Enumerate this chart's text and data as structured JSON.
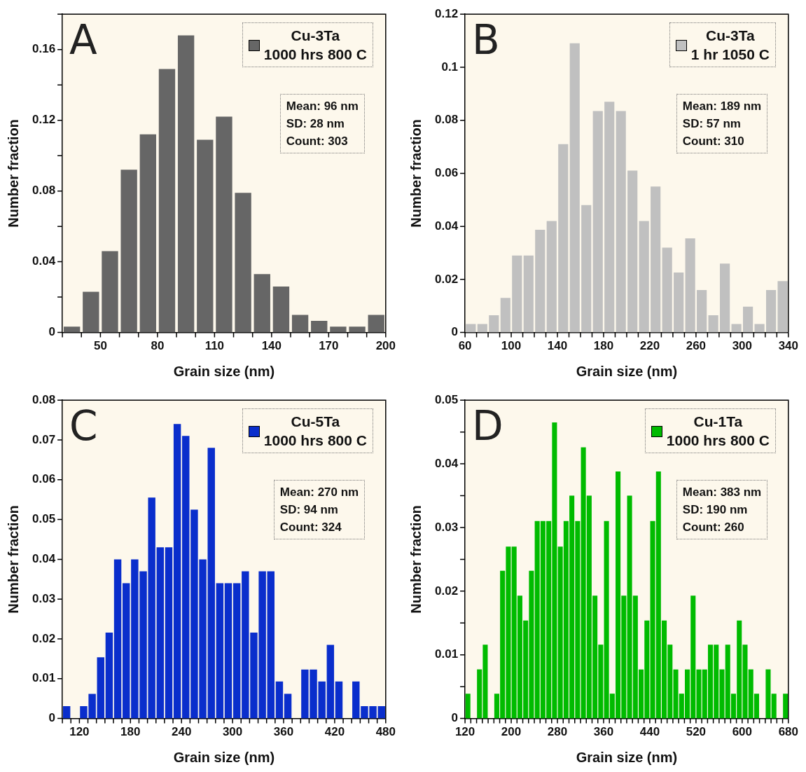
{
  "chart_data": [
    {
      "type": "histogram",
      "xlabel": "Grain size (nm)",
      "ylabel": "Number fraction",
      "legend": "top right",
      "annotations": [
        "A",
        "Mean: 96 nm",
        "SD: 28 nm",
        "Count: 303"
      ],
      "bins": [
        30,
        40,
        50,
        60,
        70,
        80,
        90,
        100,
        110,
        120,
        130,
        140,
        150,
        160,
        170,
        180,
        190,
        200
      ],
      "series": [
        {
          "name": "Cu-3Ta\n1000 hrs 800 C",
          "color": "#666666",
          "values": [
            0.0033,
            0.023,
            0.046,
            0.092,
            0.112,
            0.149,
            0.168,
            0.109,
            0.122,
            0.079,
            0.033,
            0.026,
            0.0099,
            0.0066,
            0.0033,
            0.0033,
            0.0099
          ]
        }
      ],
      "xlim": [
        30,
        200
      ],
      "xticks": [
        {
          "value": 30,
          "label": null
        },
        {
          "value": 40,
          "label": null
        },
        50,
        {
          "value": 60,
          "label": null
        },
        {
          "value": 70,
          "label": null
        },
        80,
        {
          "value": 90,
          "label": null
        },
        {
          "value": 100,
          "label": null
        },
        110,
        {
          "value": 120,
          "label": null
        },
        {
          "value": 130,
          "label": null
        },
        140,
        {
          "value": 150,
          "label": null
        },
        {
          "value": 160,
          "label": null
        },
        170,
        {
          "value": 180,
          "label": null
        },
        {
          "value": 190,
          "label": null
        },
        200
      ],
      "ylim": [
        0,
        0.18
      ],
      "yticks": [
        0,
        {
          "value": 0.02,
          "label": null
        },
        0.04,
        {
          "value": 0.06,
          "label": null
        },
        0.08,
        {
          "value": 0.1,
          "label": null
        },
        0.12,
        {
          "value": 0.14,
          "label": null
        },
        0.16,
        {
          "value": 0.18,
          "label": null
        }
      ],
      "grid": false
    },
    {
      "type": "histogram",
      "xlabel": "Grain size (nm)",
      "ylabel": "Number fraction",
      "legend": "top right",
      "annotations": [
        "B",
        "Mean: 189 nm",
        "SD: 57 nm",
        "Count: 310"
      ],
      "bins": [
        60,
        70,
        80,
        90,
        100,
        110,
        120,
        130,
        140,
        150,
        160,
        170,
        180,
        190,
        200,
        210,
        220,
        230,
        240,
        250,
        260,
        270,
        280,
        290,
        300,
        310,
        320,
        330,
        340
      ],
      "series": [
        {
          "name": "Cu-3Ta\n1 hr 1050 C",
          "color": "#c0c0c0",
          "values": [
            0.0032,
            0.0032,
            0.0065,
            0.013,
            0.029,
            0.029,
            0.0387,
            0.042,
            0.071,
            0.109,
            0.048,
            0.0835,
            0.087,
            0.0835,
            0.061,
            0.042,
            0.055,
            0.032,
            0.0226,
            0.0355,
            0.016,
            0.0065,
            0.026,
            0.0032,
            0.0097,
            0.0032,
            0.016,
            0.0194
          ]
        }
      ],
      "xlim": [
        60,
        340
      ],
      "xticks": [
        60,
        {
          "value": 70,
          "label": null
        },
        {
          "value": 80,
          "label": null
        },
        {
          "value": 90,
          "label": null
        },
        100,
        {
          "value": 110,
          "label": null
        },
        {
          "value": 120,
          "label": null
        },
        {
          "value": 130,
          "label": null
        },
        140,
        {
          "value": 150,
          "label": null
        },
        {
          "value": 160,
          "label": null
        },
        {
          "value": 170,
          "label": null
        },
        180,
        {
          "value": 190,
          "label": null
        },
        {
          "value": 200,
          "label": null
        },
        {
          "value": 210,
          "label": null
        },
        220,
        {
          "value": 230,
          "label": null
        },
        {
          "value": 240,
          "label": null
        },
        {
          "value": 250,
          "label": null
        },
        260,
        {
          "value": 270,
          "label": null
        },
        {
          "value": 280,
          "label": null
        },
        {
          "value": 290,
          "label": null
        },
        300,
        {
          "value": 310,
          "label": null
        },
        {
          "value": 320,
          "label": null
        },
        {
          "value": 330,
          "label": null
        },
        340
      ],
      "ylim": [
        0,
        0.12
      ],
      "yticks": [
        0,
        0.02,
        0.04,
        0.06,
        0.08,
        0.1,
        0.12
      ],
      "grid": false
    },
    {
      "type": "histogram",
      "xlabel": "Grain size (nm)",
      "ylabel": "Number fraction",
      "legend": "top right",
      "annotations": [
        "C",
        "Mean: 270 nm",
        "SD: 94 nm",
        "Count: 324"
      ],
      "bins": [
        100,
        110,
        120,
        130,
        140,
        150,
        160,
        170,
        180,
        190,
        200,
        210,
        220,
        230,
        240,
        250,
        260,
        270,
        280,
        290,
        300,
        310,
        320,
        330,
        340,
        350,
        360,
        370,
        380,
        390,
        400,
        410,
        420,
        430,
        440,
        450,
        460,
        470,
        480
      ],
      "series": [
        {
          "name": "Cu-5Ta\n1000 hrs 800 C",
          "color": "#0a2ecc",
          "values": [
            0.0031,
            0,
            0.0031,
            0.0062,
            0.0154,
            0.0216,
            0.04,
            0.034,
            0.04,
            0.037,
            0.0555,
            0.043,
            0.043,
            0.074,
            0.071,
            0.0525,
            0.04,
            0.068,
            0.034,
            0.034,
            0.034,
            0.037,
            0.0216,
            0.037,
            0.037,
            0.0093,
            0.0062,
            0,
            0.0123,
            0.0123,
            0.0093,
            0.0185,
            0.0093,
            0,
            0.0093,
            0.0031,
            0.0031,
            0.0031
          ]
        }
      ],
      "xlim": [
        100,
        480
      ],
      "xticks": [
        {
          "value": 100,
          "label": null
        },
        {
          "value": 110,
          "label": null
        },
        120,
        {
          "value": 130,
          "label": null
        },
        {
          "value": 140,
          "label": null
        },
        {
          "value": 150,
          "label": null
        },
        {
          "value": 160,
          "label": null
        },
        {
          "value": 170,
          "label": null
        },
        180,
        {
          "value": 190,
          "label": null
        },
        {
          "value": 200,
          "label": null
        },
        {
          "value": 210,
          "label": null
        },
        {
          "value": 220,
          "label": null
        },
        {
          "value": 230,
          "label": null
        },
        240,
        {
          "value": 250,
          "label": null
        },
        {
          "value": 260,
          "label": null
        },
        {
          "value": 270,
          "label": null
        },
        {
          "value": 280,
          "label": null
        },
        {
          "value": 290,
          "label": null
        },
        300,
        {
          "value": 310,
          "label": null
        },
        {
          "value": 320,
          "label": null
        },
        {
          "value": 330,
          "label": null
        },
        {
          "value": 340,
          "label": null
        },
        {
          "value": 350,
          "label": null
        },
        360,
        {
          "value": 370,
          "label": null
        },
        {
          "value": 380,
          "label": null
        },
        {
          "value": 390,
          "label": null
        },
        {
          "value": 400,
          "label": null
        },
        {
          "value": 410,
          "label": null
        },
        420,
        {
          "value": 430,
          "label": null
        },
        {
          "value": 440,
          "label": null
        },
        {
          "value": 450,
          "label": null
        },
        {
          "value": 460,
          "label": null
        },
        {
          "value": 470,
          "label": null
        },
        480
      ],
      "ylim": [
        0,
        0.08
      ],
      "yticks": [
        0,
        0.01,
        0.02,
        0.03,
        0.04,
        0.05,
        0.06,
        0.07,
        0.08
      ],
      "grid": false
    },
    {
      "type": "histogram",
      "xlabel": "Grain size (nm)",
      "ylabel": "Number fraction",
      "legend": "top right",
      "annotations": [
        "D",
        "Mean: 383 nm",
        "SD: 190 nm",
        "Count: 260"
      ],
      "bins": [
        120,
        130,
        140,
        150,
        160,
        170,
        180,
        190,
        200,
        210,
        220,
        230,
        240,
        250,
        260,
        270,
        280,
        290,
        300,
        310,
        320,
        330,
        340,
        350,
        360,
        370,
        380,
        390,
        400,
        410,
        420,
        430,
        440,
        450,
        460,
        470,
        480,
        490,
        500,
        510,
        520,
        530,
        540,
        550,
        560,
        570,
        580,
        590,
        600,
        610,
        620,
        630,
        640,
        650,
        660,
        670,
        680
      ],
      "series": [
        {
          "name": "Cu-1Ta\n1000 hrs 800 C",
          "color": "#00bb00",
          "values": [
            0.0039,
            0,
            0.0077,
            0.0116,
            0,
            0.0039,
            0.0232,
            0.027,
            0.027,
            0.0193,
            0.0154,
            0.0232,
            0.031,
            0.031,
            0.031,
            0.0465,
            0.027,
            0.031,
            0.035,
            0.031,
            0.0426,
            0.035,
            0.0193,
            0.0116,
            0.031,
            0.0039,
            0.0388,
            0.0193,
            0.035,
            0.0193,
            0.0077,
            0.0154,
            0.031,
            0.0388,
            0.0154,
            0.0116,
            0.0077,
            0.0039,
            0.0077,
            0.0193,
            0.0077,
            0.0077,
            0.0116,
            0.0116,
            0.0077,
            0.0116,
            0.0039,
            0.0154,
            0.0116,
            0.0077,
            0.0039,
            0,
            0.0077,
            0.0039,
            0,
            0.0039
          ]
        }
      ],
      "xlim": [
        120,
        680
      ],
      "xticks": [
        120,
        {
          "value": 130,
          "label": null
        },
        {
          "value": 140,
          "label": null
        },
        {
          "value": 150,
          "label": null
        },
        {
          "value": 160,
          "label": null
        },
        {
          "value": 170,
          "label": null
        },
        {
          "value": 180,
          "label": null
        },
        {
          "value": 190,
          "label": null
        },
        200,
        {
          "value": 210,
          "label": null
        },
        {
          "value": 220,
          "label": null
        },
        {
          "value": 230,
          "label": null
        },
        {
          "value": 240,
          "label": null
        },
        {
          "value": 250,
          "label": null
        },
        {
          "value": 260,
          "label": null
        },
        {
          "value": 270,
          "label": null
        },
        280,
        {
          "value": 290,
          "label": null
        },
        {
          "value": 300,
          "label": null
        },
        {
          "value": 310,
          "label": null
        },
        {
          "value": 320,
          "label": null
        },
        {
          "value": 330,
          "label": null
        },
        {
          "value": 340,
          "label": null
        },
        {
          "value": 350,
          "label": null
        },
        360,
        {
          "value": 370,
          "label": null
        },
        {
          "value": 380,
          "label": null
        },
        {
          "value": 390,
          "label": null
        },
        {
          "value": 400,
          "label": null
        },
        {
          "value": 410,
          "label": null
        },
        {
          "value": 420,
          "label": null
        },
        {
          "value": 430,
          "label": null
        },
        440,
        {
          "value": 450,
          "label": null
        },
        {
          "value": 460,
          "label": null
        },
        {
          "value": 470,
          "label": null
        },
        {
          "value": 480,
          "label": null
        },
        {
          "value": 490,
          "label": null
        },
        {
          "value": 500,
          "label": null
        },
        {
          "value": 510,
          "label": null
        },
        520,
        {
          "value": 530,
          "label": null
        },
        {
          "value": 540,
          "label": null
        },
        {
          "value": 550,
          "label": null
        },
        {
          "value": 560,
          "label": null
        },
        {
          "value": 570,
          "label": null
        },
        {
          "value": 580,
          "label": null
        },
        {
          "value": 590,
          "label": null
        },
        600,
        {
          "value": 610,
          "label": null
        },
        {
          "value": 620,
          "label": null
        },
        {
          "value": 630,
          "label": null
        },
        {
          "value": 640,
          "label": null
        },
        {
          "value": 650,
          "label": null
        },
        {
          "value": 660,
          "label": null
        },
        {
          "value": 670,
          "label": null
        },
        680
      ],
      "ylim": [
        0,
        0.05
      ],
      "yticks": [
        0,
        {
          "value": 0.005,
          "label": null
        },
        0.01,
        {
          "value": 0.015,
          "label": null
        },
        0.02,
        {
          "value": 0.025,
          "label": null
        },
        0.03,
        {
          "value": 0.035,
          "label": null
        },
        0.04,
        {
          "value": 0.045,
          "label": null
        },
        0.05
      ],
      "grid": false
    }
  ]
}
